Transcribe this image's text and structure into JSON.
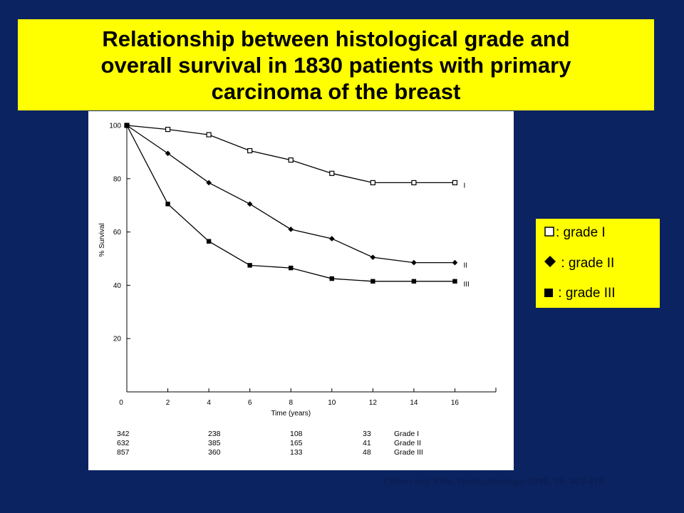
{
  "slide": {
    "background": "#0c2361",
    "title_lines": [
      "Relationship between histological grade and",
      "overall survival in 1830 patients with primary",
      "carcinoma of the breast"
    ],
    "title_background": "#ffff00",
    "legend": [
      {
        "symbol": "open-square-icon",
        "label": "□: grade I",
        "text": ": grade I"
      },
      {
        "symbol": "filled-diamond-icon",
        "label": ": grade II",
        "text": " : grade II"
      },
      {
        "symbol": "filled-square-icon",
        "label": ": grade III",
        "text": " : grade III"
      }
    ],
    "citation": "Elston and Ellis, Histopathology 1991; 19: 403-410"
  },
  "chart_data": {
    "type": "line",
    "xlabel": "Time (years)",
    "ylabel": "% Survival",
    "xlim": [
      0,
      18
    ],
    "ylim": [
      0,
      100
    ],
    "x_ticks": [
      0,
      2,
      4,
      6,
      8,
      10,
      12,
      14,
      16
    ],
    "y_ticks": [
      20,
      40,
      60,
      80,
      100
    ],
    "grid": false,
    "x": [
      0,
      2,
      4,
      6,
      8,
      10,
      12,
      14,
      16
    ],
    "series": [
      {
        "name": "I",
        "marker": "open-square",
        "values": [
          100,
          98.5,
          96.5,
          90.5,
          87,
          82,
          78.5,
          78.5,
          78.5
        ]
      },
      {
        "name": "II",
        "marker": "filled-diamond",
        "values": [
          100,
          89.5,
          78.5,
          70.5,
          61,
          57.5,
          50.5,
          48.5,
          48.5
        ]
      },
      {
        "name": "III",
        "marker": "filled-square",
        "values": [
          100,
          70.5,
          56.5,
          47.5,
          46.5,
          42.5,
          41.5,
          41.5,
          41.5
        ]
      }
    ],
    "at_risk": {
      "times": [
        0,
        4,
        8,
        12
      ],
      "rows": [
        {
          "label": "Grade I",
          "values": [
            "342",
            "238",
            "108",
            "33"
          ]
        },
        {
          "label": "Grade II",
          "values": [
            "632",
            "385",
            "165",
            "41"
          ]
        },
        {
          "label": "Grade III",
          "values": [
            "857",
            "360",
            "133",
            "48"
          ]
        }
      ]
    }
  }
}
